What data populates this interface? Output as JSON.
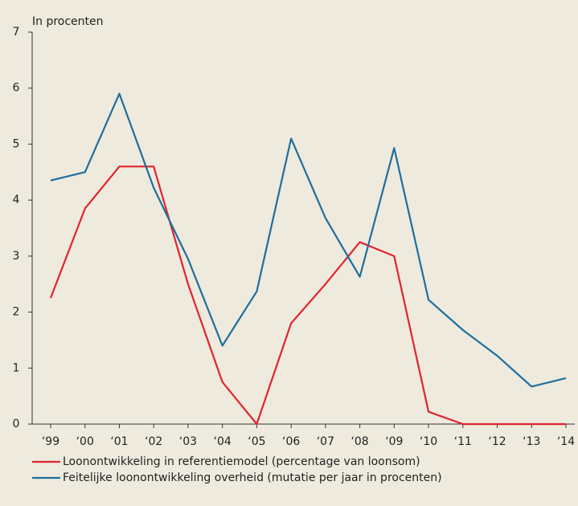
{
  "chart_data": {
    "type": "line",
    "y_label": "In procenten",
    "categories": [
      "‘99",
      "‘00",
      "‘01",
      "‘02",
      "‘03",
      "‘04",
      "‘05",
      "‘06",
      "‘07",
      "‘08",
      "‘09",
      "‘10",
      "‘11",
      "‘12",
      "‘13",
      "‘14"
    ],
    "series": [
      {
        "name": "Loonontwikkeling in referentiemodel  (percentage van loonsom)",
        "color": "#e1242f",
        "values": [
          2.25,
          3.85,
          4.6,
          4.6,
          2.5,
          0.75,
          0,
          1.8,
          2.5,
          3.25,
          3.0,
          0.22,
          0,
          0,
          0,
          0
        ]
      },
      {
        "name": "Feitelijke loonontwikkeling  overheid (mutatie per jaar in procenten)",
        "color": "#1f6e9c",
        "values": [
          4.35,
          4.5,
          5.9,
          4.22,
          2.95,
          1.4,
          2.37,
          5.1,
          3.68,
          2.63,
          4.93,
          2.22,
          1.68,
          1.22,
          0.67,
          0.82
        ]
      }
    ],
    "ylim": [
      0,
      7
    ],
    "yticks": [
      0,
      1,
      2,
      3,
      4,
      5,
      6,
      7
    ]
  }
}
